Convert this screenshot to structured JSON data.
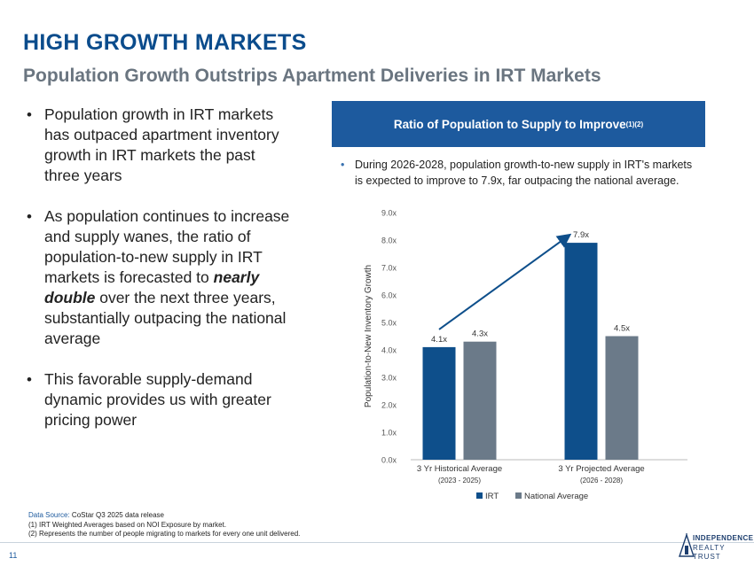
{
  "header": {
    "title": "HIGH GROWTH MARKETS",
    "subtitle": "Population Growth Outstrips Apartment Deliveries in IRT Markets"
  },
  "bullets": {
    "b1": "Population growth in IRT markets has outpaced apartment inventory growth in IRT markets the past three years",
    "b2_pre": "As population continues to increase and supply wanes, the ratio of population-to-new supply in IRT markets is forecasted to ",
    "b2_emph": "nearly double",
    "b2_post": " over the next three years, substantially outpacing the national average",
    "b3": "This favorable supply-demand dynamic provides us with greater pricing power"
  },
  "panel": {
    "title": "Ratio of Population to Supply to Improve",
    "title_sup": "(1)(2)",
    "note": "During 2026-2028, population growth-to-new supply in IRT's markets is expected to improve to 7.9x, far outpacing the national average."
  },
  "chart_data": {
    "type": "bar",
    "ylabel": "Population-to-New Inventory Growth",
    "ylim": [
      0,
      9
    ],
    "yticks": [
      "0.0x",
      "1.0x",
      "2.0x",
      "3.0x",
      "4.0x",
      "5.0x",
      "6.0x",
      "7.0x",
      "8.0x",
      "9.0x"
    ],
    "categories": [
      "3 Yr Historical Average",
      "3 Yr Projected Average"
    ],
    "category_sublabels": [
      "(2023 - 2025)",
      "(2026 - 2028)"
    ],
    "series": [
      {
        "name": "IRT",
        "color": "#0e4f8b",
        "values": [
          4.1,
          7.9
        ],
        "labels": [
          "4.1x",
          "7.9x"
        ]
      },
      {
        "name": "National Average",
        "color": "#6b7a89",
        "values": [
          4.3,
          4.5
        ],
        "labels": [
          "4.3x",
          "4.5x"
        ]
      }
    ],
    "annotation": "arrow from IRT 4.1x to IRT 7.9x",
    "arrow_color": "#0e4f8b",
    "legend": "bottom-center"
  },
  "footer": {
    "source_label": "Data Source:",
    "source_text": " CoStar Q3 2025 data release",
    "note1": "(1)  IRT Weighted Averages based on NOI Exposure by market.",
    "note2": "(2)  Represents the number of people migrating to markets for every one unit delivered.",
    "page_number": "11",
    "logo_line1": "INDEPENDENCE",
    "logo_line2": "REALTY TRUST"
  }
}
